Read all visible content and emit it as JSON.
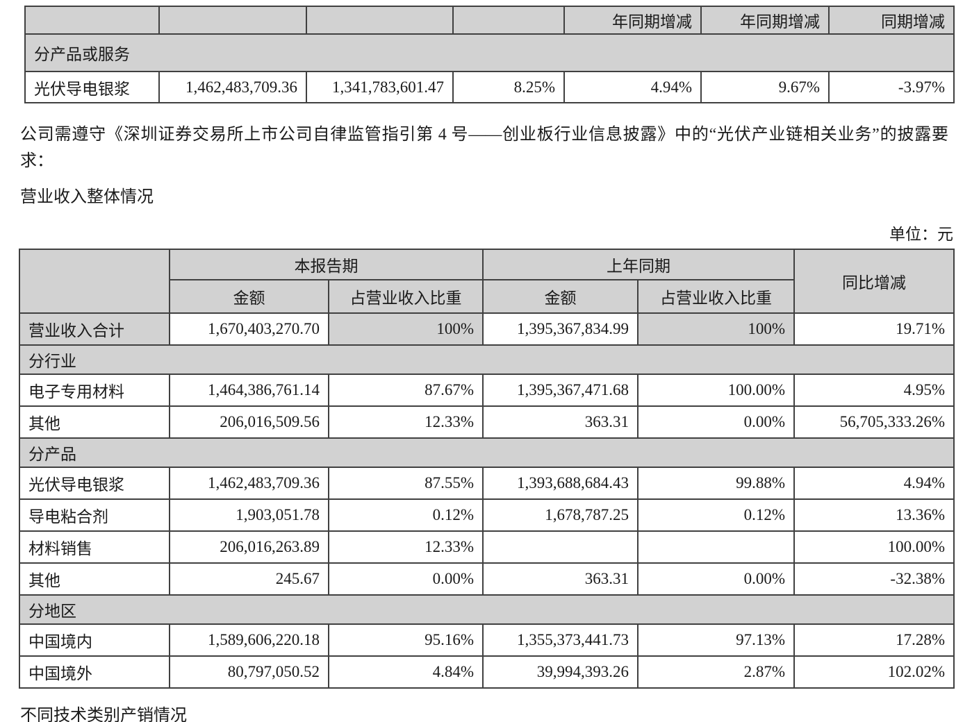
{
  "colors": {
    "row_shading": "#d2d2d2",
    "border": "#404040",
    "text": "#1a1a1a"
  },
  "top_table": {
    "headers": [
      "",
      "",
      "",
      "",
      "年同期增减",
      "年同期增减",
      "同期增减"
    ],
    "section_label": "分产品或服务",
    "row": [
      "光伏导电银浆",
      "1,462,483,709.36",
      "1,341,783,601.47",
      "8.25%",
      "4.94%",
      "9.67%",
      "-3.97%"
    ]
  },
  "paragraph": "公司需遵守《深圳证券交易所上市公司自律监管指引第 4 号——创业板行业信息披露》中的“光伏产业链相关业务”的披露要求：",
  "section_title": "营业收入整体情况",
  "unit_label": "单位：元",
  "main_table": {
    "header": {
      "current_period": "本报告期",
      "prior_period": "上年同期",
      "yoy": "同比增减",
      "amount": "金额",
      "share": "占营业收入比重"
    },
    "rows": [
      {
        "type": "total",
        "cells": [
          "营业收入合计",
          "1,670,403,270.70",
          "100%",
          "1,395,367,834.99",
          "100%",
          "19.71%"
        ]
      },
      {
        "type": "section",
        "label": "分行业"
      },
      {
        "type": "data",
        "cells": [
          "电子专用材料",
          "1,464,386,761.14",
          "87.67%",
          "1,395,367,471.68",
          "100.00%",
          "4.95%"
        ]
      },
      {
        "type": "data",
        "cells": [
          "其他",
          "206,016,509.56",
          "12.33%",
          "363.31",
          "0.00%",
          "56,705,333.26%"
        ]
      },
      {
        "type": "section",
        "label": "分产品"
      },
      {
        "type": "data",
        "cells": [
          "光伏导电银浆",
          "1,462,483,709.36",
          "87.55%",
          "1,393,688,684.43",
          "99.88%",
          "4.94%"
        ]
      },
      {
        "type": "data",
        "cells": [
          "导电粘合剂",
          "1,903,051.78",
          "0.12%",
          "1,678,787.25",
          "0.12%",
          "13.36%"
        ]
      },
      {
        "type": "data",
        "cells": [
          "材料销售",
          "206,016,263.89",
          "12.33%",
          "",
          "",
          "100.00%"
        ]
      },
      {
        "type": "data",
        "cells": [
          "其他",
          "245.67",
          "0.00%",
          "363.31",
          "0.00%",
          "-32.38%"
        ]
      },
      {
        "type": "section",
        "label": "分地区"
      },
      {
        "type": "data",
        "cells": [
          "中国境内",
          "1,589,606,220.18",
          "95.16%",
          "1,355,373,441.73",
          "97.13%",
          "17.28%"
        ]
      },
      {
        "type": "data",
        "cells": [
          "中国境外",
          "80,797,050.52",
          "4.84%",
          "39,994,393.26",
          "2.87%",
          "102.02%"
        ]
      }
    ]
  },
  "footer_text": "不同技术类别产销情况"
}
